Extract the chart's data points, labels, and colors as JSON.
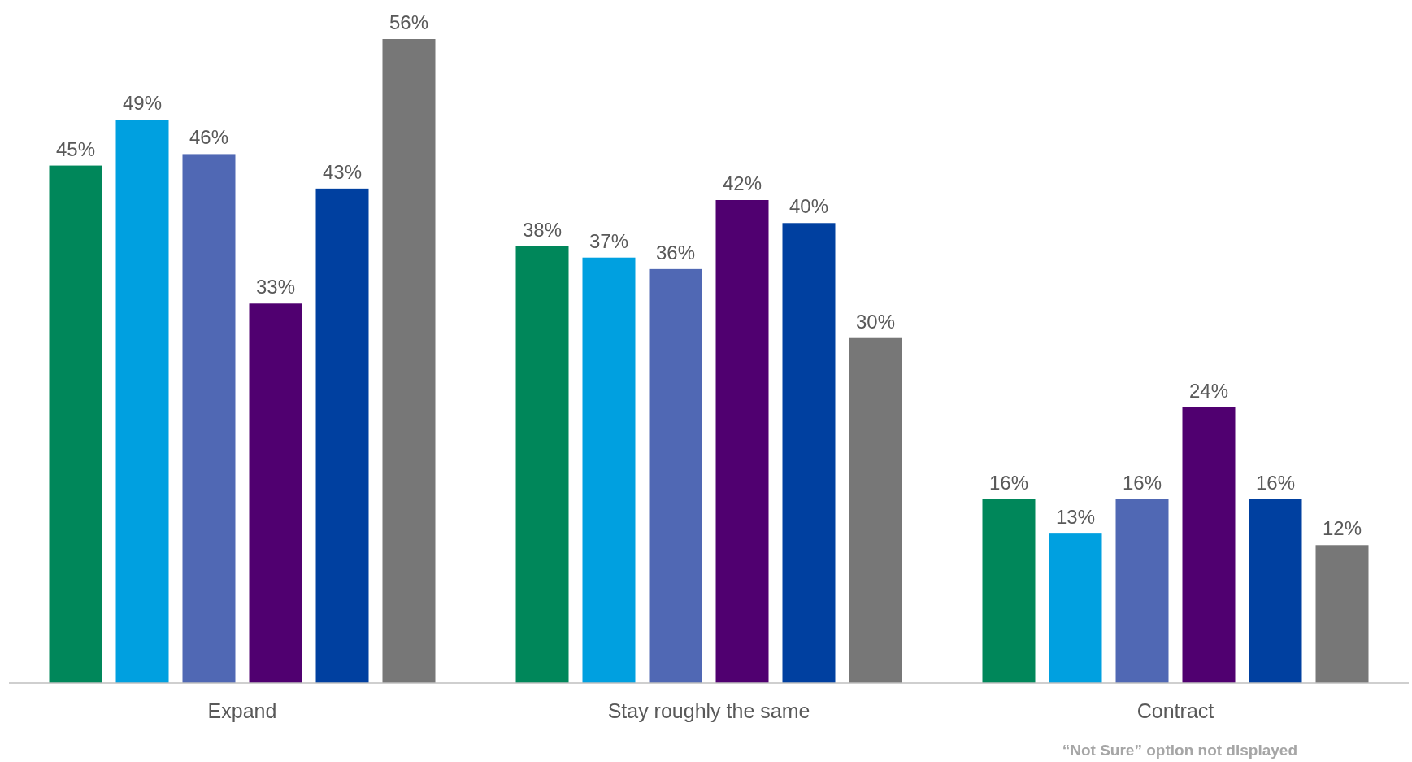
{
  "chart_data": {
    "type": "bar",
    "categories": [
      "Expand",
      "Stay roughly the same",
      "Contract"
    ],
    "series": [
      {
        "color": "#00875a",
        "values": [
          45,
          38,
          16
        ],
        "value_labels": [
          "45%",
          "38%",
          "16%"
        ]
      },
      {
        "color": "#00a0e0",
        "values": [
          49,
          37,
          13
        ],
        "value_labels": [
          "49%",
          "37%",
          "13%"
        ]
      },
      {
        "color": "#5068b4",
        "values": [
          46,
          36,
          16
        ],
        "value_labels": [
          "46%",
          "36%",
          "16%"
        ]
      },
      {
        "color": "#500070",
        "values": [
          33,
          42,
          24
        ],
        "value_labels": [
          "33%",
          "42%",
          "24%"
        ]
      },
      {
        "color": "#0040a0",
        "values": [
          43,
          40,
          16
        ],
        "value_labels": [
          "43%",
          "40%",
          "16%"
        ]
      },
      {
        "color": "#777777",
        "values": [
          56,
          30,
          12
        ],
        "value_labels": [
          "56%",
          "30%",
          "12%"
        ]
      }
    ],
    "annotations": [
      "“Not Sure” option not displayed"
    ]
  }
}
